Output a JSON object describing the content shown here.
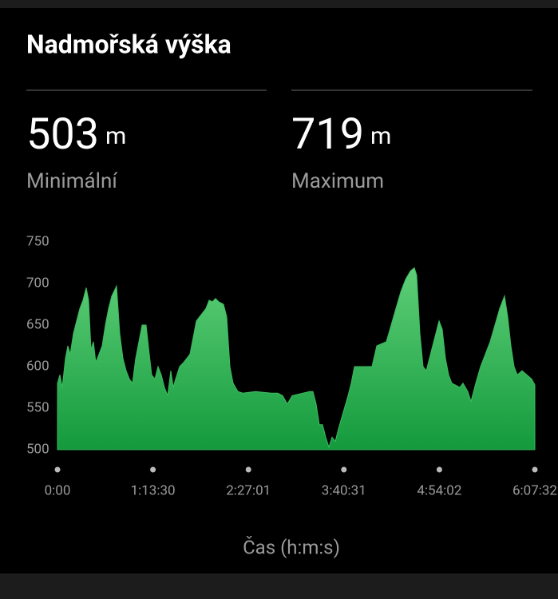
{
  "header": {
    "title": "Nadmořská výška"
  },
  "summary": [
    {
      "value": 503,
      "unit": "m",
      "label": "Minimální"
    },
    {
      "value": 719,
      "unit": "m",
      "label": "Maximum"
    }
  ],
  "chart_data": {
    "type": "area",
    "x_label": "Čas (h:m:s)",
    "xlim": [
      0,
      22052
    ],
    "xticks": [
      {
        "value": 0,
        "label": "0:00"
      },
      {
        "value": 4410,
        "label": "1:13:30"
      },
      {
        "value": 8821,
        "label": "2:27:01"
      },
      {
        "value": 13231,
        "label": "3:40:31"
      },
      {
        "value": 17642,
        "label": "4:54:02"
      },
      {
        "value": 22052,
        "label": "6:07:32"
      }
    ],
    "ylim": [
      500,
      750
    ],
    "yticks": [
      500,
      550,
      600,
      650,
      700,
      750
    ],
    "x": [
      0,
      111,
      221,
      369,
      479,
      590,
      738,
      885,
      1033,
      1180,
      1328,
      1438,
      1549,
      1659,
      1770,
      1918,
      2065,
      2213,
      2360,
      2508,
      2729,
      2876,
      3024,
      3171,
      3319,
      3466,
      3614,
      3761,
      3909,
      4093,
      4241,
      4351,
      4499,
      4646,
      4794,
      4941,
      5089,
      5236,
      5347,
      5458,
      5642,
      5826,
      6121,
      6269,
      6416,
      6564,
      6711,
      6859,
      7006,
      7154,
      7301,
      7449,
      7670,
      7818,
      7965,
      8113,
      8334,
      8555,
      9145,
      9883,
      10178,
      10399,
      10620,
      10842,
      11653,
      11800,
      11948,
      12095,
      12243,
      12390,
      12538,
      12685,
      12833,
      12980,
      13202,
      13423,
      13570,
      13718,
      14529,
      14750,
      15193,
      15414,
      15635,
      15857,
      16078,
      16299,
      16484,
      16594,
      16742,
      16889,
      17037,
      17184,
      17332,
      17479,
      17627,
      17774,
      17922,
      18069,
      18217,
      18585,
      18733,
      18954,
      19102,
      19323,
      19544,
      19766,
      19987,
      20208,
      20429,
      20651,
      20798,
      20946,
      21093,
      21240,
      21462,
      21683,
      21904,
      22052
    ],
    "series": [
      {
        "color": "#3dba5f",
        "values": [
          580,
          590,
          575,
          610,
          625,
          615,
          640,
          655,
          670,
          680,
          695,
          680,
          620,
          630,
          605,
          615,
          625,
          650,
          670,
          685,
          697,
          640,
          610,
          595,
          585,
          580,
          610,
          630,
          650,
          650,
          615,
          590,
          585,
          600,
          590,
          575,
          565,
          595,
          575,
          585,
          600,
          605,
          615,
          635,
          655,
          660,
          665,
          670,
          680,
          678,
          682,
          678,
          675,
          660,
          600,
          580,
          570,
          568,
          570,
          568,
          568,
          565,
          555,
          565,
          570,
          570,
          555,
          530,
          530,
          515,
          503,
          515,
          510,
          525,
          545,
          565,
          580,
          600,
          600,
          625,
          630,
          650,
          670,
          690,
          705,
          715,
          719,
          710,
          640,
          600,
          595,
          610,
          625,
          640,
          655,
          645,
          610,
          590,
          580,
          575,
          580,
          570,
          558,
          580,
          600,
          615,
          630,
          650,
          670,
          685,
          660,
          625,
          600,
          590,
          595,
          590,
          585,
          578
        ]
      }
    ]
  }
}
